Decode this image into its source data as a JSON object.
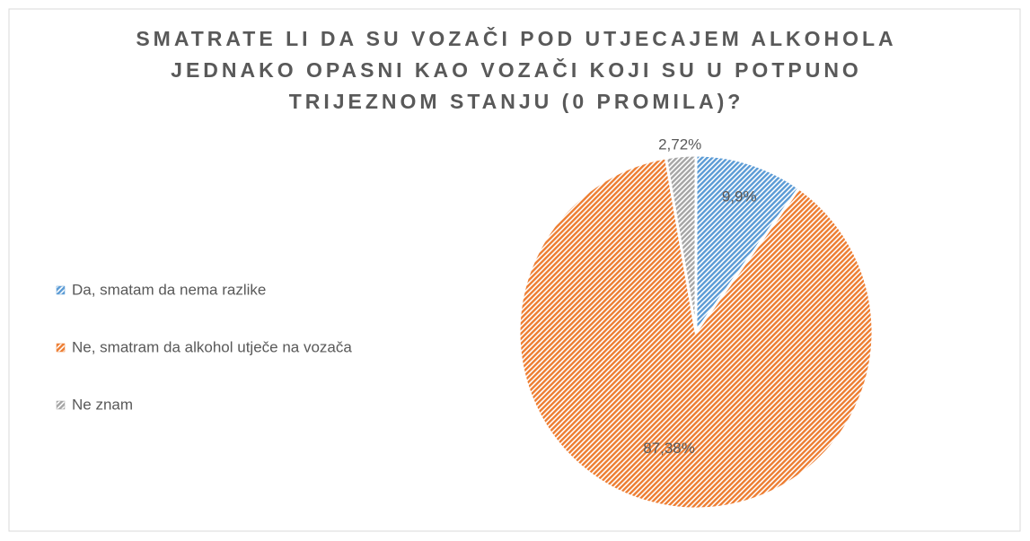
{
  "chart_data": {
    "type": "pie",
    "title": "SMATRATE LI DA SU VOZAČI POD UTJECAJEM ALKOHOLA JEDNAKO OPASNI KAO VOZAČI KOJI SU U POTPUNO TRIJEZNOM STANJU (0 PROMILA)?",
    "categories": [
      "Da, smatam da nema razlike",
      "Ne, smatram da alkohol utječe na vozača",
      "Ne znam"
    ],
    "values": [
      9.9,
      87.38,
      2.72
    ],
    "value_labels": [
      "9,9%",
      "87,38%",
      "2,72%"
    ],
    "colors": [
      "#5b9bd5",
      "#ed7d31",
      "#a5a5a5"
    ],
    "legend": "left"
  }
}
